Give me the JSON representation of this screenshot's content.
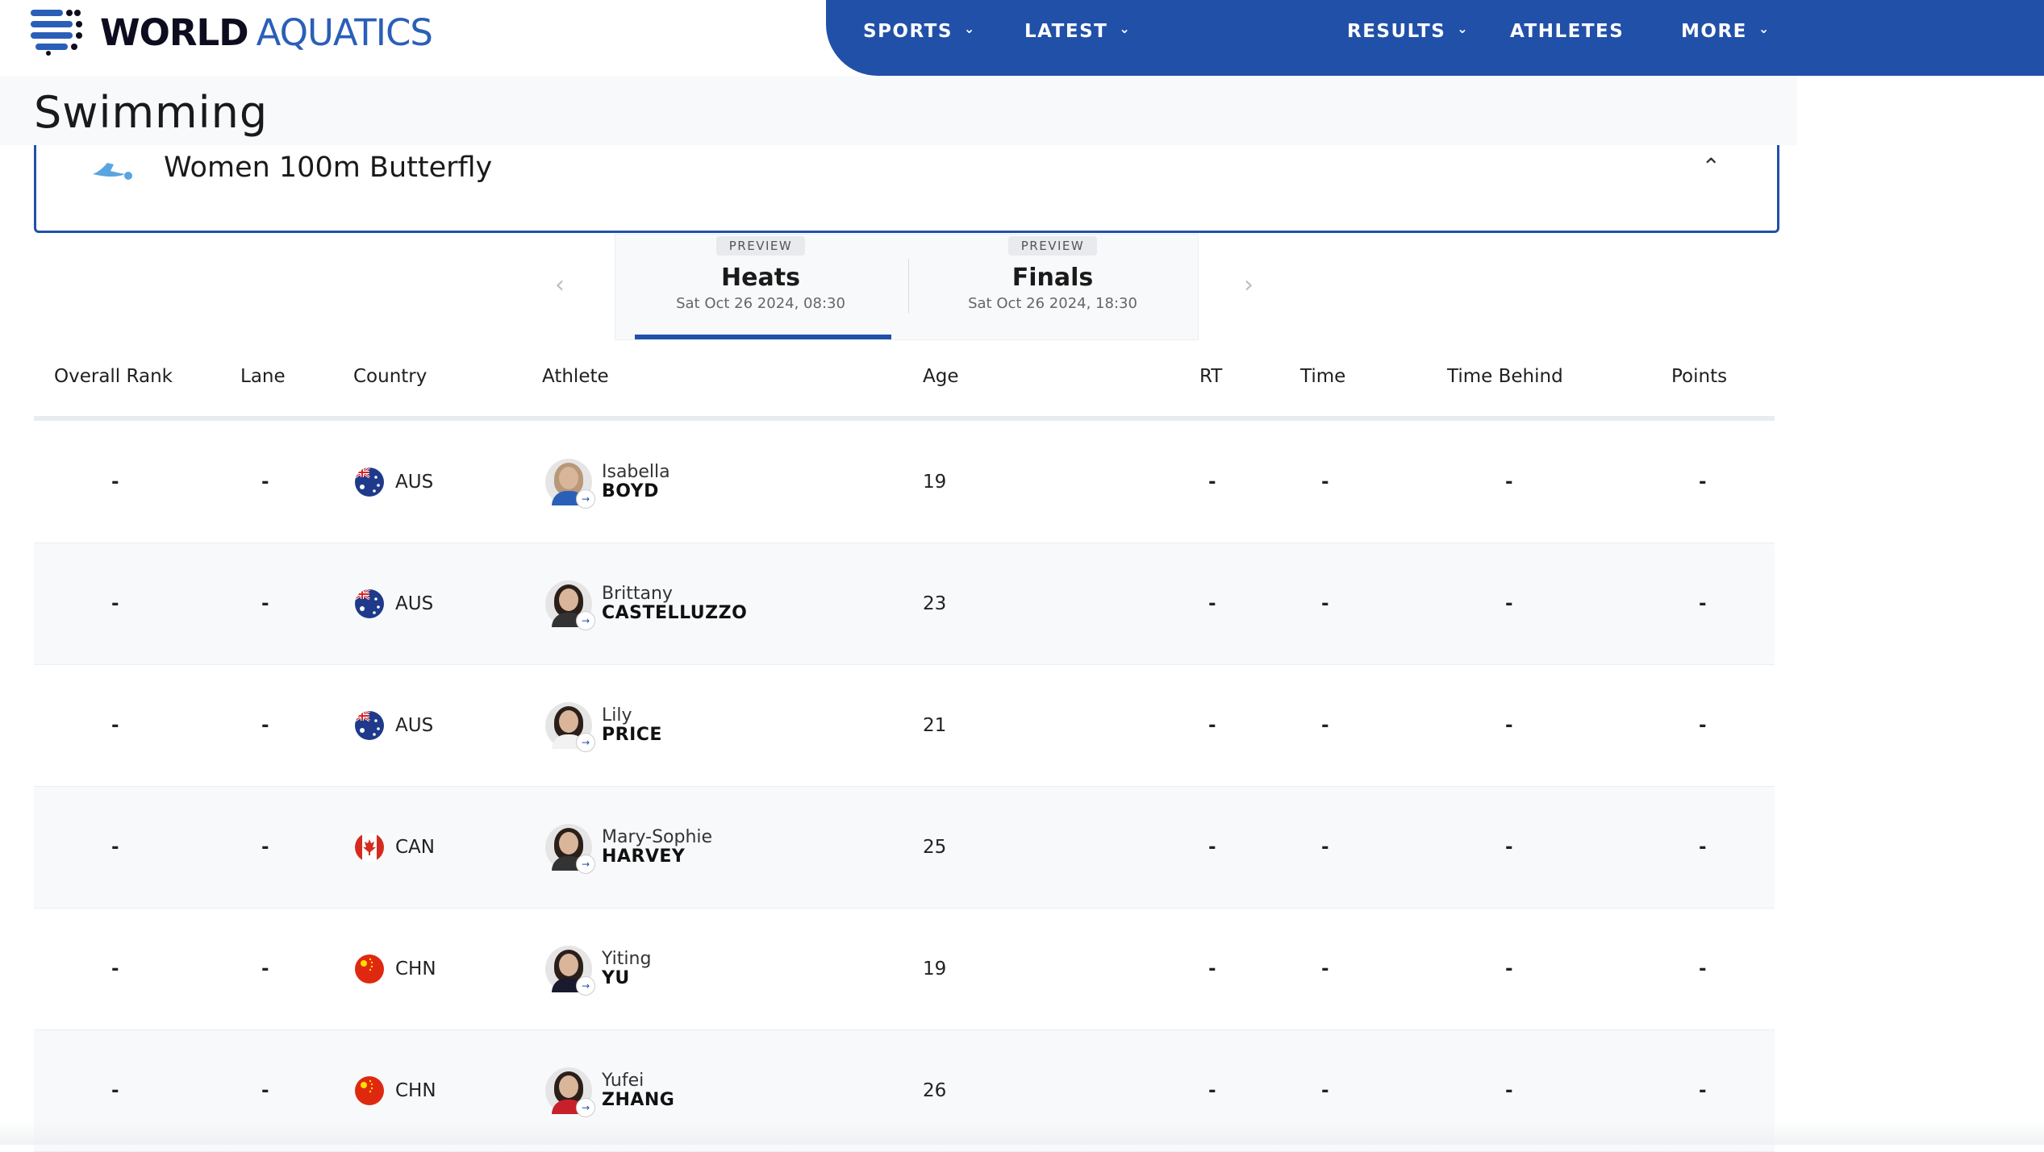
{
  "brand": {
    "part1": "WORLD",
    "part2": "AQUATICS"
  },
  "nav": [
    {
      "label": "SPORTS",
      "dropdown": true
    },
    {
      "label": "LATEST",
      "dropdown": true
    },
    {
      "label": "RESULTS",
      "dropdown": true
    },
    {
      "label": "ATHLETES",
      "dropdown": false
    },
    {
      "label": "MORE",
      "dropdown": true
    }
  ],
  "sport": "Swimming",
  "event": {
    "name": "Women 100m Butterfly"
  },
  "phases": [
    {
      "badge": "PREVIEW",
      "name": "Heats",
      "date": "Sat Oct 26 2024, 08:30",
      "active": true
    },
    {
      "badge": "PREVIEW",
      "name": "Finals",
      "date": "Sat Oct 26 2024, 18:30",
      "active": false
    }
  ],
  "table": {
    "headers": [
      "Overall Rank",
      "Lane",
      "Country",
      "Athlete",
      "Age",
      "RT",
      "Time",
      "Time Behind",
      "Points"
    ],
    "rows": [
      {
        "rank": "-",
        "lane": "-",
        "country": "AUS",
        "first": "Isabella",
        "last": "BOYD",
        "age": "19",
        "rt": "-",
        "time": "-",
        "behind": "-",
        "points": "-"
      },
      {
        "rank": "-",
        "lane": "-",
        "country": "AUS",
        "first": "Brittany",
        "last": "CASTELLUZZO",
        "age": "23",
        "rt": "-",
        "time": "-",
        "behind": "-",
        "points": "-"
      },
      {
        "rank": "-",
        "lane": "-",
        "country": "AUS",
        "first": "Lily",
        "last": "PRICE",
        "age": "21",
        "rt": "-",
        "time": "-",
        "behind": "-",
        "points": "-"
      },
      {
        "rank": "-",
        "lane": "-",
        "country": "CAN",
        "first": "Mary-Sophie",
        "last": "HARVEY",
        "age": "25",
        "rt": "-",
        "time": "-",
        "behind": "-",
        "points": "-"
      },
      {
        "rank": "-",
        "lane": "-",
        "country": "CHN",
        "first": "Yiting",
        "last": "YU",
        "age": "19",
        "rt": "-",
        "time": "-",
        "behind": "-",
        "points": "-"
      },
      {
        "rank": "-",
        "lane": "-",
        "country": "CHN",
        "first": "Yufei",
        "last": "ZHANG",
        "age": "26",
        "rt": "-",
        "time": "-",
        "behind": "-",
        "points": "-"
      }
    ]
  },
  "colors": {
    "brand_blue": "#2150a8",
    "accent_blue": "#2a5fb8",
    "row_alt": "#f8f9fb"
  }
}
